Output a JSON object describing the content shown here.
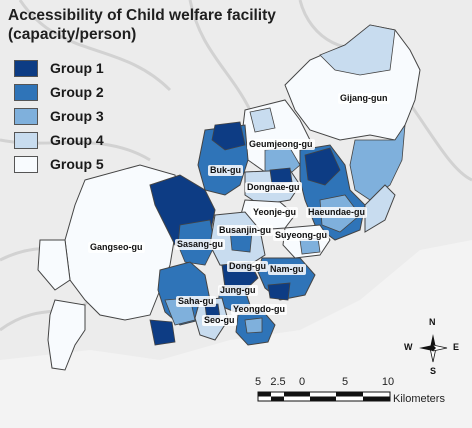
{
  "title": "Accessibility of Child welfare facility (capacity/person)",
  "legend": [
    {
      "label": "Group 1",
      "color": "#0d3c84"
    },
    {
      "label": "Group 2",
      "color": "#2f74b8"
    },
    {
      "label": "Group 3",
      "color": "#7fb0dc"
    },
    {
      "label": "Group 4",
      "color": "#c8dcef"
    },
    {
      "label": "Group 5",
      "color": "#f8fbfe"
    }
  ],
  "districts": {
    "gijang": "Gijang-gun",
    "geumjeong": "Geumjeong-gu",
    "buk": "Buk-gu",
    "dongnae": "Dongnae-gu",
    "yeonje": "Yeonje-gu",
    "haeundae": "Haeundae-gu",
    "gangseo": "Gangseo-gu",
    "sasang": "Sasang-gu",
    "busanjin": "Busanjin-gu",
    "suyeong": "Suyeong-gu",
    "dong": "Dong-gu",
    "nam": "Nam-gu",
    "jung": "Jung-gu",
    "saha": "Saha-gu",
    "seo": "Seo-gu",
    "yeongdo": "Yeongdo-gu"
  },
  "scale": {
    "ticks": [
      "5",
      "2.5",
      "0",
      "5",
      "10"
    ],
    "unit": "Kilometers"
  },
  "north_arrow": {
    "n": "N",
    "s": "S",
    "e": "E",
    "w": "W"
  }
}
